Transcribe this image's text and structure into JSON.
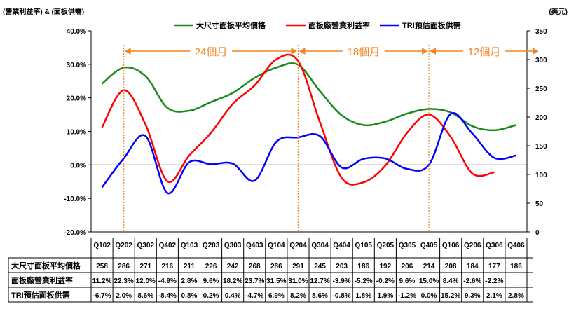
{
  "chart_data": {
    "type": "line",
    "left_axis_title": "(營業利益率) & (面板供需)",
    "right_axis_title": "(美元)",
    "left_ticks": [
      "40.0%",
      "30.0%",
      "20.0%",
      "10.0%",
      "0.0%",
      "-10.0%",
      "-20.0%"
    ],
    "left_ylim": [
      -20,
      40
    ],
    "right_ticks": [
      "350",
      "300",
      "250",
      "200",
      "150",
      "100",
      "50",
      "0"
    ],
    "right_ylim": [
      0,
      350
    ],
    "categories": [
      "Q102",
      "Q202",
      "Q302",
      "Q402",
      "Q103",
      "Q203",
      "Q303",
      "Q403",
      "Q104",
      "Q204",
      "Q304",
      "Q404",
      "Q105",
      "Q205",
      "Q305",
      "Q405",
      "Q106",
      "Q206",
      "Q306",
      "Q406"
    ],
    "series": [
      {
        "name": "大尺寸面板平均價格",
        "axis": "right",
        "color": "#1a8a1a",
        "values": [
          258,
          286,
          271,
          216,
          211,
          226,
          242,
          268,
          286,
          291,
          245,
          203,
          186,
          192,
          206,
          214,
          208,
          184,
          177,
          186
        ]
      },
      {
        "name": "面板廠營業利益率",
        "axis": "left",
        "color": "#ff0000",
        "values": [
          11.2,
          22.3,
          12.0,
          -4.9,
          2.8,
          9.6,
          18.2,
          23.7,
          31.5,
          31.0,
          12.7,
          -3.9,
          -5.2,
          -0.2,
          9.6,
          15.0,
          8.4,
          -2.6,
          -2.2,
          null
        ]
      },
      {
        "name": "TRI預估面板供需",
        "axis": "left",
        "color": "#0000ff",
        "values": [
          -6.7,
          2.0,
          8.6,
          -8.4,
          0.8,
          0.2,
          0.4,
          -4.7,
          6.9,
          8.2,
          8.6,
          -0.8,
          1.8,
          1.9,
          -1.2,
          0.0,
          15.2,
          9.3,
          2.1,
          2.8
        ]
      }
    ],
    "cycle_markers": [
      {
        "label": "24個月",
        "from": "Q202",
        "to": "Q204"
      },
      {
        "label": "18個月",
        "from": "Q204",
        "to": "Q405"
      },
      {
        "label": "12個月",
        "from": "Q405",
        "to": "Q406"
      }
    ],
    "marker_color": "#f58220",
    "table": {
      "row_labels": [
        "大尺寸面板平均價格",
        "面板廠營業利益率",
        "TRI預估面板供需"
      ],
      "rows": [
        [
          "258",
          "286",
          "271",
          "216",
          "211",
          "226",
          "242",
          "268",
          "286",
          "291",
          "245",
          "203",
          "186",
          "192",
          "206",
          "214",
          "208",
          "184",
          "177",
          "186"
        ],
        [
          "11.2%",
          "22.3%",
          "12.0%",
          "-4.9%",
          "2.8%",
          "9.6%",
          "18.2%",
          "23.7%",
          "31.5%",
          "31.0%",
          "12.7%",
          "-3.9%",
          "-5.2%",
          "-0.2%",
          "9.6%",
          "15.0%",
          "8.4%",
          "-2.6%",
          "-2.2%",
          ""
        ],
        [
          "-6.7%",
          "2.0%",
          "8.6%",
          "-8.4%",
          "0.8%",
          "0.2%",
          "0.4%",
          "-4.7%",
          "6.9%",
          "8.2%",
          "8.6%",
          "-0.8%",
          "1.8%",
          "1.9%",
          "-1.2%",
          "0.0%",
          "15.2%",
          "9.3%",
          "2.1%",
          "2.8%"
        ]
      ]
    },
    "legend_position": "top-center",
    "grid": false
  }
}
